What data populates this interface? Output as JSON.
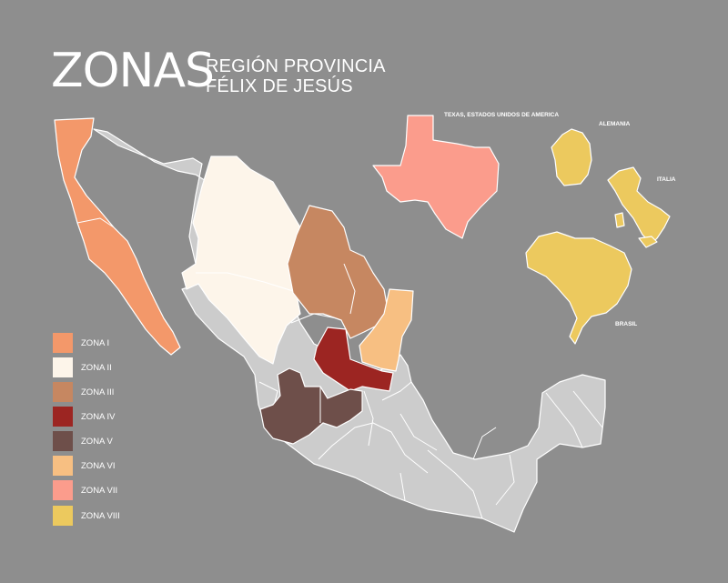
{
  "header": {
    "title": "ZONAS",
    "subtitle_line1": "REGIÓN PROVINCIA",
    "subtitle_line2": "FÉLIX DE JESÚS"
  },
  "legend": [
    {
      "label": "ZONA I",
      "color": "#f3986a"
    },
    {
      "label": "ZONA II",
      "color": "#fdf5ea"
    },
    {
      "label": "ZONA III",
      "color": "#c68761"
    },
    {
      "label": "ZONA IV",
      "color": "#9c2522"
    },
    {
      "label": "ZONA V",
      "color": "#6e4f4a"
    },
    {
      "label": "ZONA VI",
      "color": "#f7bf82"
    },
    {
      "label": "ZONA VII",
      "color": "#fb9c8c"
    },
    {
      "label": "ZONA VIII",
      "color": "#ecc95e"
    }
  ],
  "labels": {
    "texas": "TEXAS, ESTADOS UNIDOS DE AMERICA",
    "alemania": "ALEMANIA",
    "italia": "ITALIA",
    "brasil": "BRASIL"
  },
  "colors": {
    "background": "#8e8e8e",
    "other_states": "#cccccc",
    "borders": "#ffffff"
  }
}
